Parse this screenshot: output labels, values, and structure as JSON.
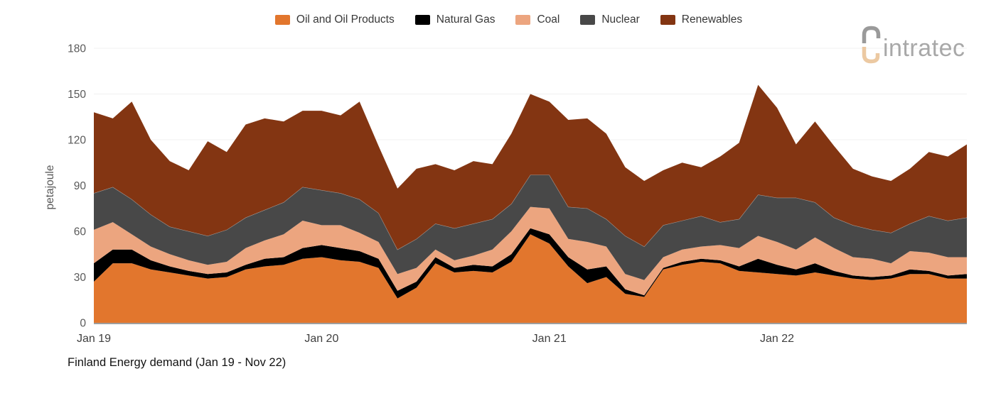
{
  "caption": "Finland Energy demand (Jan 19 - Nov 22)",
  "legend": {
    "items": [
      {
        "label": "Oil and Oil Products",
        "color": "#e2762d"
      },
      {
        "label": "Natural Gas",
        "color": "#000000"
      },
      {
        "label": "Coal",
        "color": "#eca57f"
      },
      {
        "label": "Nuclear",
        "color": "#484848"
      },
      {
        "label": "Renewables",
        "color": "#833512"
      }
    ]
  },
  "logo": {
    "text": "intratec",
    "text_color": "#a8a8a8",
    "mark_top_color": "#9a9a9a",
    "mark_bottom_color": "#ecc9a2"
  },
  "y_axis": {
    "title": "petajoule",
    "ticks": [
      "0",
      "30",
      "60",
      "90",
      "120",
      "150",
      "180"
    ],
    "max": 180
  },
  "x_axis": {
    "ticks": [
      {
        "label": "Jan 19",
        "month_index": 0
      },
      {
        "label": "Jan 20",
        "month_index": 12
      },
      {
        "label": "Jan 21",
        "month_index": 24
      },
      {
        "label": "Jan 22",
        "month_index": 36
      }
    ]
  },
  "theme": {
    "gridline": "#f1f1f1",
    "axis_line": "#9e9e9e",
    "y_tick_color": "#595959",
    "x_tick_color": "#3f3f3f",
    "stack_divider": "rgba(255,255,255,0.45)"
  },
  "chart_data": {
    "type": "area",
    "stacked": true,
    "title": "Finland Energy demand (Jan 19 - Nov 22)",
    "xlabel": "",
    "ylabel": "petajoule",
    "ylim": [
      0,
      180
    ],
    "grid": "horizontal, every 30",
    "legend_position": "top-center",
    "x": [
      "Jan 19",
      "Feb 19",
      "Mar 19",
      "Apr 19",
      "May 19",
      "Jun 19",
      "Jul 19",
      "Aug 19",
      "Sep 19",
      "Oct 19",
      "Nov 19",
      "Dec 19",
      "Jan 20",
      "Feb 20",
      "Mar 20",
      "Apr 20",
      "May 20",
      "Jun 20",
      "Jul 20",
      "Aug 20",
      "Sep 20",
      "Oct 20",
      "Nov 20",
      "Dec 20",
      "Jan 21",
      "Feb 21",
      "Mar 21",
      "Apr 21",
      "May 21",
      "Jun 21",
      "Jul 21",
      "Aug 21",
      "Sep 21",
      "Oct 21",
      "Nov 21",
      "Dec 21",
      "Jan 22",
      "Feb 22",
      "Mar 22",
      "Apr 22",
      "May 22",
      "Jun 22",
      "Jul 22",
      "Aug 22",
      "Sep 22",
      "Oct 22",
      "Nov 22"
    ],
    "x_tick_labels": [
      "Jan 19",
      "Jan 20",
      "Jan 21",
      "Jan 22"
    ],
    "unit": "petajoule",
    "series": [
      {
        "name": "Oil and Oil Products",
        "color": "#e2762d",
        "values": [
          27,
          39,
          39,
          35,
          33,
          31,
          29,
          30,
          35,
          37,
          38,
          42,
          43,
          41,
          40,
          36,
          16,
          23,
          39,
          33,
          34,
          33,
          40,
          58,
          52,
          37,
          26,
          30,
          19,
          17,
          35,
          38,
          40,
          39,
          34,
          33,
          32,
          31,
          33,
          31,
          29,
          28,
          29,
          32,
          32,
          29,
          29
        ]
      },
      {
        "name": "Natural Gas",
        "color": "#000000",
        "values": [
          12,
          9,
          9,
          6,
          4,
          3,
          3,
          3,
          3,
          5,
          5,
          7,
          8,
          8,
          7,
          6,
          5,
          4,
          4,
          3,
          4,
          4,
          5,
          4,
          6,
          6,
          9,
          7,
          3,
          1,
          1,
          2,
          2,
          2,
          3,
          9,
          6,
          4,
          6,
          3,
          2,
          2,
          2,
          3,
          2,
          2,
          3
        ]
      },
      {
        "name": "Coal",
        "color": "#eca57f",
        "values": [
          22,
          18,
          10,
          9,
          8,
          7,
          6,
          7,
          11,
          12,
          15,
          18,
          13,
          15,
          12,
          11,
          11,
          9,
          5,
          5,
          6,
          11,
          15,
          14,
          17,
          12,
          18,
          13,
          10,
          10,
          7,
          8,
          8,
          10,
          12,
          15,
          15,
          13,
          17,
          15,
          12,
          12,
          8,
          12,
          12,
          12,
          11
        ]
      },
      {
        "name": "Nuclear",
        "color": "#484848",
        "values": [
          24,
          23,
          23,
          21,
          18,
          19,
          19,
          21,
          20,
          20,
          21,
          22,
          23,
          21,
          22,
          19,
          16,
          19,
          17,
          21,
          21,
          20,
          18,
          21,
          22,
          21,
          22,
          18,
          25,
          22,
          21,
          19,
          20,
          15,
          19,
          27,
          29,
          34,
          23,
          20,
          21,
          19,
          20,
          18,
          24,
          24,
          26
        ]
      },
      {
        "name": "Renewables",
        "color": "#833512",
        "values": [
          53,
          45,
          64,
          49,
          43,
          40,
          62,
          51,
          61,
          60,
          53,
          50,
          52,
          51,
          64,
          44,
          40,
          46,
          39,
          38,
          41,
          36,
          46,
          53,
          48,
          57,
          59,
          56,
          45,
          43,
          36,
          38,
          32,
          43,
          50,
          72,
          59,
          35,
          53,
          47,
          37,
          35,
          34,
          36,
          42,
          42,
          48
        ]
      }
    ]
  }
}
